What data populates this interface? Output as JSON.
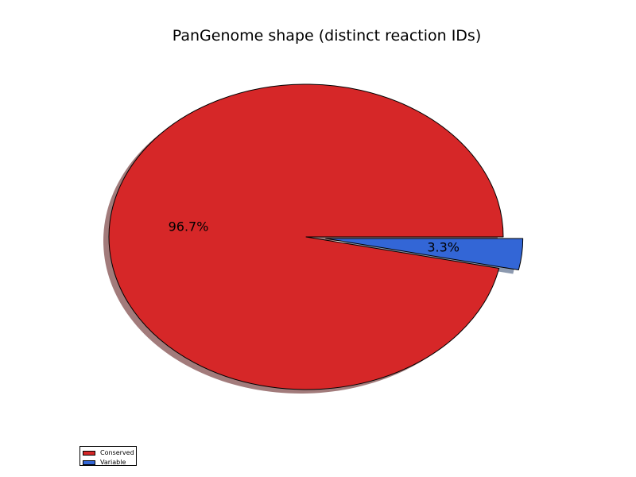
{
  "chart_data": {
    "type": "pie",
    "title": "PanGenome shape (distinct reaction IDs)",
    "slices": [
      {
        "label": "Conserved",
        "value": 96.7,
        "display": "96.7%",
        "color": "#d62728",
        "explode": 0
      },
      {
        "label": "Variable",
        "value": 3.3,
        "display": "3.3%",
        "color": "#3366d6",
        "explode": 0.1
      }
    ],
    "shadow": true,
    "startangle": 0,
    "direction": "counterclockwise",
    "legend": {
      "loc": "lower-left",
      "entries": [
        "Conserved",
        "Variable"
      ]
    }
  }
}
